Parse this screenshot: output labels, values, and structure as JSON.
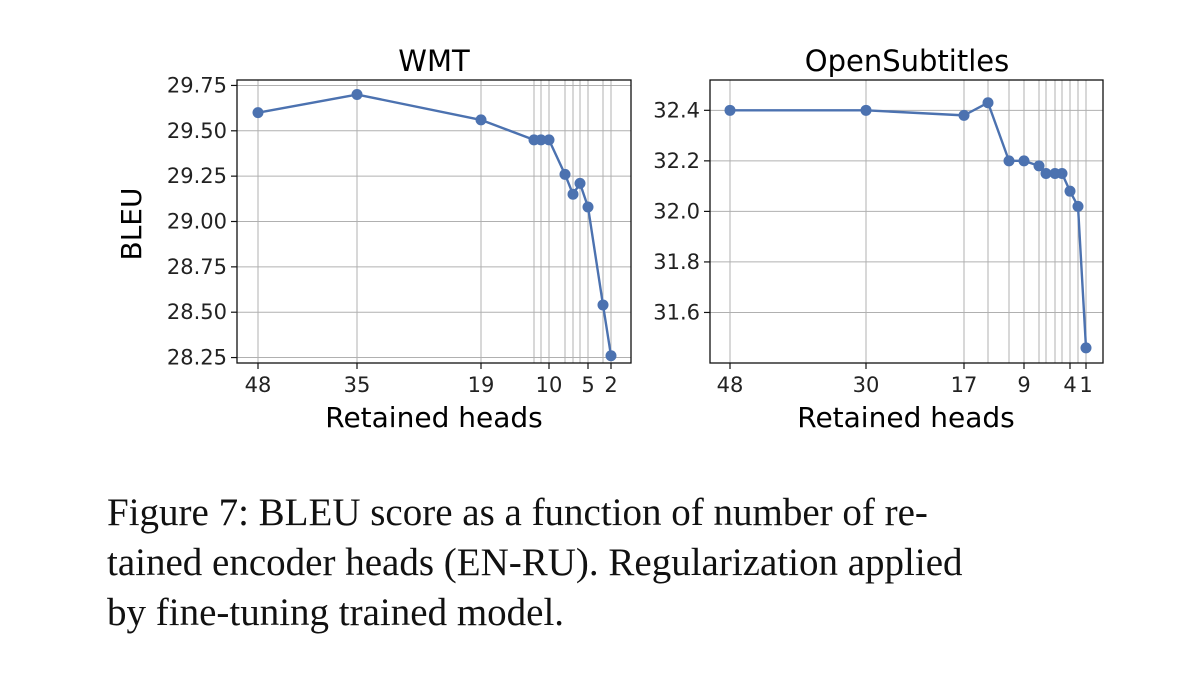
{
  "chart_data": [
    {
      "type": "line",
      "title": "WMT",
      "xlabel": "Retained heads",
      "ylabel": "BLEU",
      "x_scale": "descending_nonlinear",
      "x": [
        48,
        35,
        19,
        12,
        11,
        10,
        8,
        7,
        6,
        5,
        3,
        2
      ],
      "y": [
        29.6,
        29.7,
        29.56,
        29.45,
        29.45,
        29.45,
        29.26,
        29.15,
        29.21,
        29.08,
        28.54,
        28.26
      ],
      "xticks": [
        48,
        35,
        19,
        10,
        5,
        2
      ],
      "xtick_labels": [
        "48",
        "35",
        "19",
        "10",
        "5",
        "2"
      ],
      "yticks": [
        28.25,
        28.5,
        28.75,
        29.0,
        29.25,
        29.5,
        29.75
      ],
      "ytick_labels": [
        "28.25",
        "28.50",
        "28.75",
        "29.00",
        "29.25",
        "29.50",
        "29.75"
      ],
      "ylim": [
        28.22,
        29.78
      ],
      "x_gridlines": [
        48,
        35,
        19,
        12,
        11,
        10,
        8,
        7,
        6,
        5,
        3,
        2
      ],
      "grid": true,
      "color": "#4c72b0"
    },
    {
      "type": "line",
      "title": "OpenSubtitles",
      "xlabel": "Retained heads",
      "ylabel": "",
      "x_scale": "descending_nonlinear",
      "x": [
        48,
        30,
        17,
        15,
        11,
        9,
        8,
        7,
        6,
        5,
        4,
        3,
        1
      ],
      "y": [
        32.4,
        32.4,
        32.38,
        32.43,
        32.2,
        32.2,
        32.18,
        32.15,
        32.15,
        32.15,
        32.08,
        32.02,
        31.46
      ],
      "xticks": [
        48,
        30,
        17,
        9,
        4,
        1
      ],
      "xtick_labels": [
        "48",
        "30",
        "17",
        "9",
        "4",
        "1"
      ],
      "yticks": [
        31.6,
        31.8,
        32.0,
        32.2,
        32.4
      ],
      "ytick_labels": [
        "31.6",
        "31.8",
        "32.0",
        "32.2",
        "32.4"
      ],
      "ylim": [
        31.4,
        32.52
      ],
      "x_gridlines": [
        48,
        30,
        17,
        15,
        11,
        9,
        8,
        7,
        6,
        5,
        4,
        3,
        1
      ],
      "grid": true,
      "color": "#4c72b0"
    }
  ],
  "caption": {
    "line1": "Figure 7:  BLEU score as a function of number of re-",
    "line2": "tained encoder heads (EN-RU). Regularization applied",
    "line3": "by fine-tuning trained model."
  }
}
